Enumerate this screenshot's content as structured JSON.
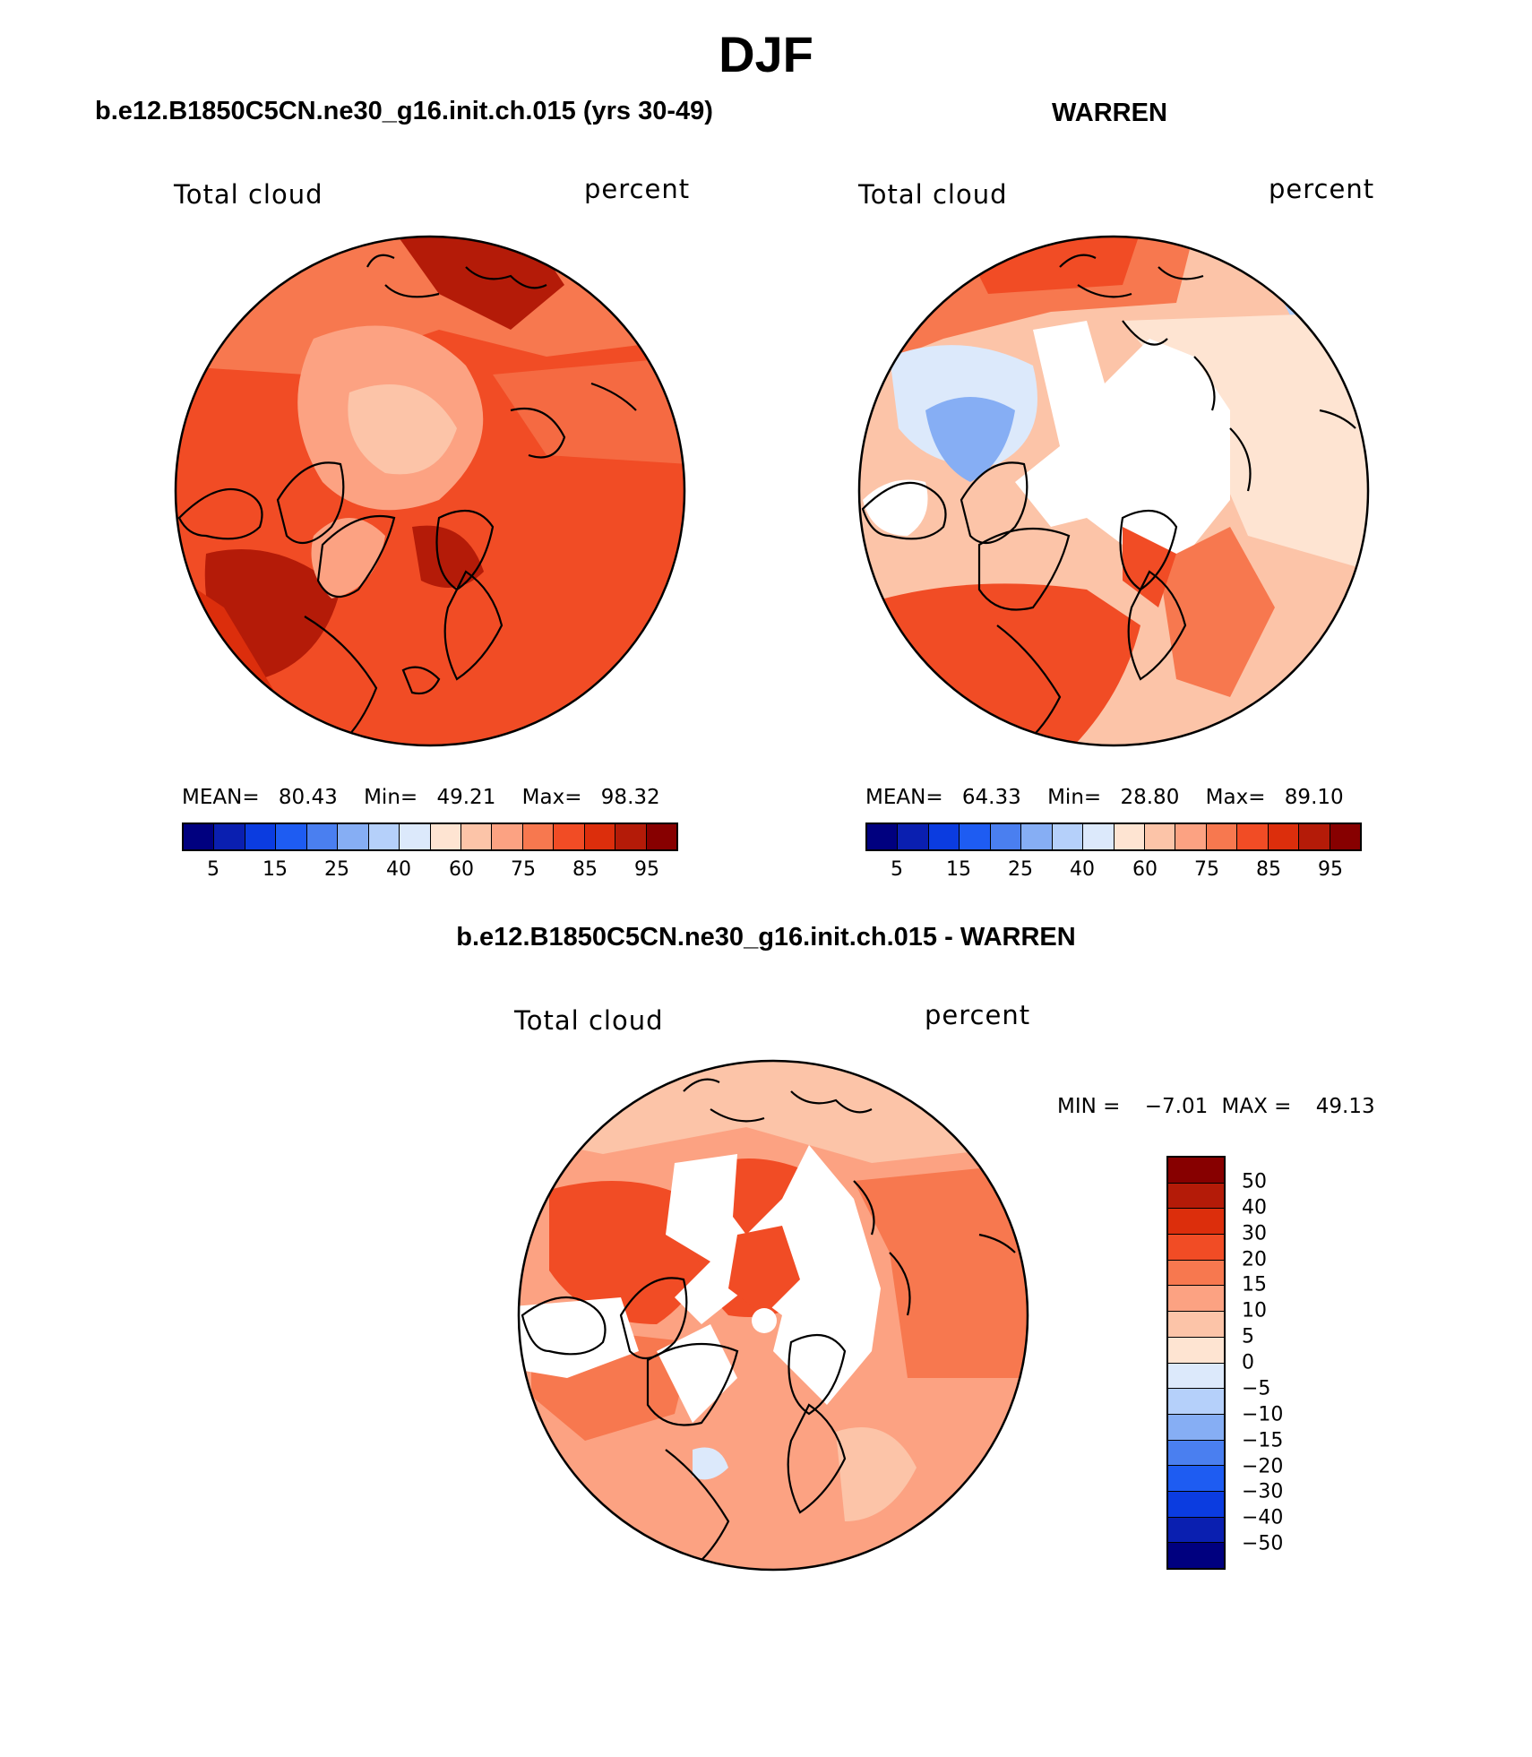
{
  "figure": {
    "season": "DJF"
  },
  "panels": [
    {
      "title": "b.e12.B1850C5CN.ne30_g16.init.ch.015 (yrs 30-49)",
      "variable": "Total cloud",
      "units": "percent",
      "stats": {
        "mean_label": "MEAN=",
        "mean": "80.43",
        "min_label": "Min=",
        "min": "49.21",
        "max_label": "Max=",
        "max": "98.32"
      },
      "dominant_color": "#e8401c"
    },
    {
      "title": "WARREN",
      "variable": "Total cloud",
      "units": "percent",
      "stats": {
        "mean_label": "MEAN=",
        "mean": "64.33",
        "min_label": "Min=",
        "min": "28.80",
        "max_label": "Max=",
        "max": "89.10"
      },
      "dominant_color": "#fbb59a"
    }
  ],
  "diff_panel": {
    "title": "b.e12.B1850C5CN.ne30_g16.init.ch.015 - WARREN",
    "variable": "Total cloud",
    "units": "percent",
    "stats": {
      "min_label": "MIN =",
      "min": "−7.01",
      "max_label": "MAX =",
      "max": "49.13"
    }
  },
  "colorbar_abs": {
    "colors": [
      "#00007f",
      "#0a1fb0",
      "#0b3ce0",
      "#1e5cf2",
      "#4a7ff0",
      "#86aef4",
      "#b5d0fa",
      "#dce9fb",
      "#fee4d2",
      "#fcc4a8",
      "#fca282",
      "#f7784f",
      "#f14c25",
      "#dc2e0c",
      "#b41b08",
      "#870000"
    ],
    "tick_labels": [
      "5",
      "15",
      "25",
      "40",
      "60",
      "75",
      "85",
      "95"
    ]
  },
  "colorbar_diff": {
    "colors": [
      "#870000",
      "#b41b08",
      "#dc2e0c",
      "#f14c25",
      "#f7784f",
      "#fca282",
      "#fcc4a8",
      "#fee4d2",
      "#dce9fb",
      "#b5d0fa",
      "#86aef4",
      "#4a7ff0",
      "#1e5cf2",
      "#0b3ce0",
      "#0a1fb0",
      "#00007f"
    ],
    "tick_labels": [
      "50",
      "40",
      "30",
      "20",
      "15",
      "10",
      "5",
      "0",
      "−5",
      "−10",
      "−15",
      "−20",
      "−30",
      "−40",
      "−50"
    ]
  },
  "chart_data": [
    {
      "type": "heatmap",
      "projection": "north polar stereographic",
      "title": "b.e12.B1850C5CN.ne30_g16.init.ch.015 (yrs 30-49)",
      "field": "Total cloud",
      "units": "percent",
      "mean": 80.43,
      "min": 49.21,
      "max": 98.32,
      "levels": [
        5,
        10,
        15,
        20,
        25,
        30,
        40,
        50,
        60,
        70,
        75,
        80,
        85,
        90,
        95
      ]
    },
    {
      "type": "heatmap",
      "projection": "north polar stereographic",
      "title": "WARREN",
      "field": "Total cloud",
      "units": "percent",
      "mean": 64.33,
      "min": 28.8,
      "max": 89.1,
      "levels": [
        5,
        10,
        15,
        20,
        25,
        30,
        40,
        50,
        60,
        70,
        75,
        80,
        85,
        90,
        95
      ]
    },
    {
      "type": "heatmap",
      "projection": "north polar stereographic",
      "title": "b.e12.B1850C5CN.ne30_g16.init.ch.015 - WARREN",
      "field": "Total cloud",
      "units": "percent",
      "min": -7.01,
      "max": 49.13,
      "levels": [
        -50,
        -40,
        -30,
        -20,
        -15,
        -10,
        -5,
        0,
        5,
        10,
        15,
        20,
        30,
        40,
        50
      ]
    }
  ]
}
